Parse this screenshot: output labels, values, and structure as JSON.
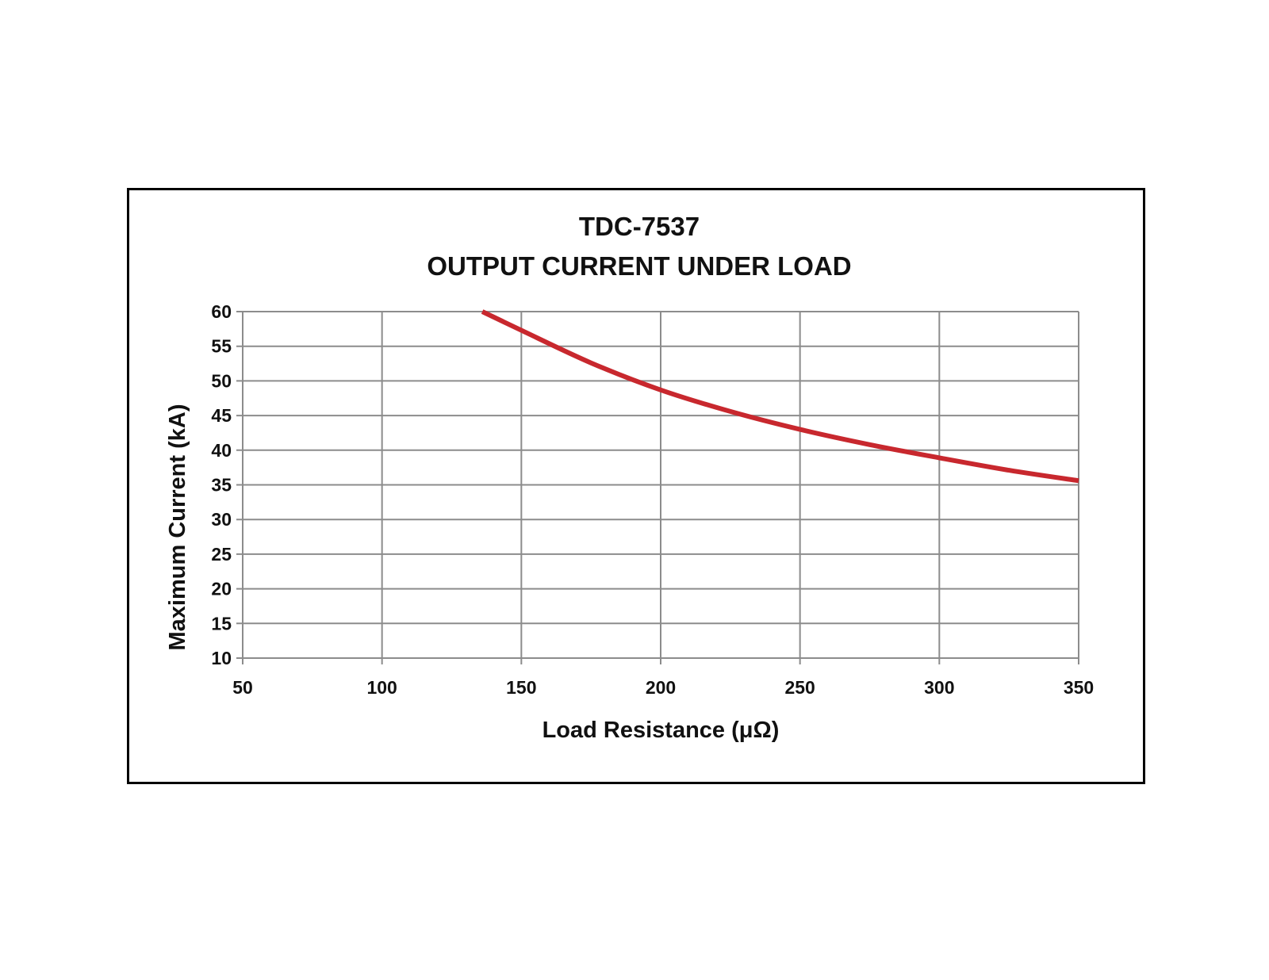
{
  "chart_data": {
    "type": "line",
    "title_line1": "TDC-7537",
    "title_line2": "OUTPUT CURRENT UNDER LOAD",
    "xlabel": "Load Resistance (μΩ)",
    "ylabel": "Maximum Current (kA)",
    "xlim": [
      50,
      350
    ],
    "ylim": [
      10,
      60
    ],
    "x_ticks": [
      "50",
      "100",
      "150",
      "200",
      "250",
      "300",
      "350"
    ],
    "y_ticks": [
      "10",
      "15",
      "20",
      "25",
      "30",
      "35",
      "40",
      "45",
      "50",
      "55",
      "60"
    ],
    "grid": true,
    "legend": "none",
    "series": [
      {
        "color": "#c8282e",
        "x": [
          136,
          150,
          175,
          200,
          225,
          250,
          275,
          300,
          325,
          350
        ],
        "y": [
          60,
          57.3,
          52.6,
          48.7,
          45.6,
          43.0,
          40.8,
          38.9,
          37.1,
          35.6
        ]
      }
    ],
    "colors": {
      "grid": "#8c8c8c",
      "axis": "#8c8c8c",
      "frame": "#000000",
      "text": "#111111"
    }
  }
}
